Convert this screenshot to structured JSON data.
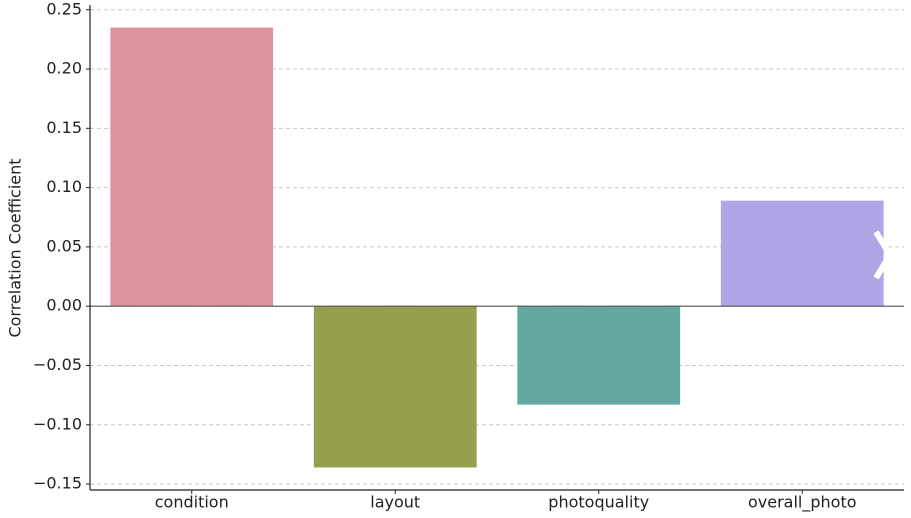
{
  "chart_data": {
    "type": "bar",
    "y_label": "Correlation Coefficient",
    "categories": [
      "condition",
      "layout",
      "photoquality",
      "overall_photo"
    ],
    "values": [
      0.235,
      -0.136,
      -0.083,
      0.089
    ],
    "colors": [
      "#dc949f",
      "#969f4c",
      "#64a9a1",
      "#b2a5e6"
    ],
    "ylim": [
      -0.155,
      0.254
    ],
    "yticks": [
      {
        "value": -0.15,
        "label": "−0.15"
      },
      {
        "value": -0.1,
        "label": "−0.10"
      },
      {
        "value": -0.05,
        "label": "−0.05"
      },
      {
        "value": 0,
        "label": "0.00"
      },
      0.05,
      {
        "value": 0.1,
        "label": "0.10"
      },
      0.15,
      {
        "value": 0.2,
        "label": "0.20"
      },
      0.25
    ],
    "grid": true
  }
}
